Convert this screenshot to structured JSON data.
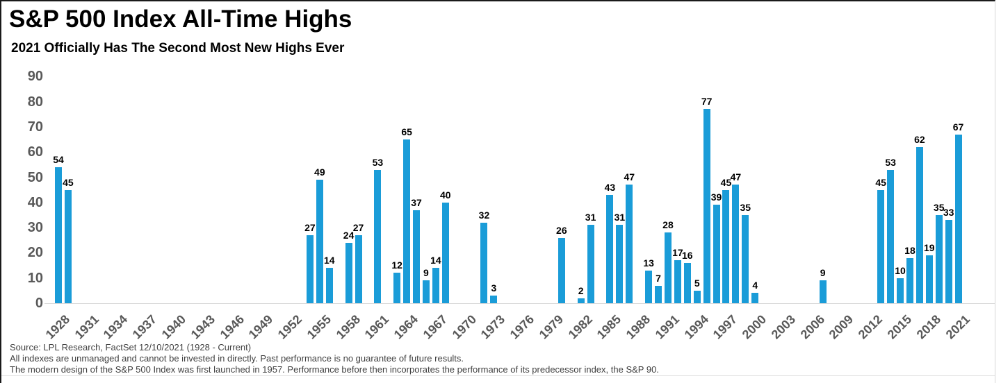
{
  "header": {
    "title": "S&P 500 Index All-Time Highs",
    "subtitle": "2021 Officially Has The Second Most New Highs Ever"
  },
  "chart_data": {
    "type": "bar",
    "title": "S&P 500 Index All-Time Highs",
    "subtitle": "2021 Officially Has The Second Most New Highs Ever",
    "xlabel": "",
    "ylabel": "",
    "ylim": [
      0,
      90
    ],
    "y_ticks": [
      0,
      10,
      20,
      30,
      40,
      50,
      60,
      70,
      80,
      90
    ],
    "x_domain": [
      1928,
      2021
    ],
    "x_tick_labels": [
      "1928",
      "1931",
      "1934",
      "1937",
      "1940",
      "1943",
      "1946",
      "1949",
      "1952",
      "1955",
      "1958",
      "1961",
      "1964",
      "1967",
      "1970",
      "1973",
      "1976",
      "1979",
      "1982",
      "1985",
      "1988",
      "1991",
      "1994",
      "1997",
      "2000",
      "2003",
      "2006",
      "2009",
      "2012",
      "2015",
      "2018",
      "2021"
    ],
    "grid": false,
    "legend": false,
    "bar_color": "#1A9CD8",
    "bars": [
      {
        "year": 1928,
        "value": 54
      },
      {
        "year": 1929,
        "value": 45
      },
      {
        "year": 1954,
        "value": 27
      },
      {
        "year": 1955,
        "value": 49
      },
      {
        "year": 1956,
        "value": 14
      },
      {
        "year": 1958,
        "value": 24
      },
      {
        "year": 1959,
        "value": 27
      },
      {
        "year": 1961,
        "value": 53
      },
      {
        "year": 1963,
        "value": 12
      },
      {
        "year": 1964,
        "value": 65
      },
      {
        "year": 1965,
        "value": 37
      },
      {
        "year": 1966,
        "value": 9
      },
      {
        "year": 1967,
        "value": 14
      },
      {
        "year": 1968,
        "value": 40
      },
      {
        "year": 1972,
        "value": 32
      },
      {
        "year": 1973,
        "value": 3
      },
      {
        "year": 1980,
        "value": 26
      },
      {
        "year": 1982,
        "value": 2
      },
      {
        "year": 1983,
        "value": 31
      },
      {
        "year": 1985,
        "value": 43
      },
      {
        "year": 1986,
        "value": 31
      },
      {
        "year": 1987,
        "value": 47
      },
      {
        "year": 1989,
        "value": 13
      },
      {
        "year": 1990,
        "value": 7
      },
      {
        "year": 1991,
        "value": 28
      },
      {
        "year": 1992,
        "value": 17
      },
      {
        "year": 1993,
        "value": 16
      },
      {
        "year": 1994,
        "value": 5
      },
      {
        "year": 1995,
        "value": 77
      },
      {
        "year": 1996,
        "value": 39
      },
      {
        "year": 1997,
        "value": 45
      },
      {
        "year": 1998,
        "value": 47
      },
      {
        "year": 1999,
        "value": 35
      },
      {
        "year": 2000,
        "value": 4
      },
      {
        "year": 2007,
        "value": 9
      },
      {
        "year": 2013,
        "value": 45
      },
      {
        "year": 2014,
        "value": 53
      },
      {
        "year": 2015,
        "value": 10
      },
      {
        "year": 2016,
        "value": 18
      },
      {
        "year": 2017,
        "value": 62
      },
      {
        "year": 2018,
        "value": 19
      },
      {
        "year": 2019,
        "value": 35
      },
      {
        "year": 2020,
        "value": 33
      },
      {
        "year": 2021,
        "value": 67
      }
    ]
  },
  "colors": {
    "bar": "#1A9CD8",
    "axis_text": "#595959",
    "data_label": "#000000",
    "baseline": "#D9D9D9",
    "frame_dark": "#1A1A1A",
    "frame_light": "#D6D6D6"
  },
  "footer": {
    "lines": [
      "Source: LPL Research, FactSet 12/10/2021 (1928 - Current)",
      "All indexes are unmanaged and cannot be invested in directly. Past performance is no guarantee of future results.",
      "The modern design of the S&P 500 Index was first launched in 1957. Performance before then incorporates the performance of its predecessor index, the S&P 90."
    ]
  }
}
